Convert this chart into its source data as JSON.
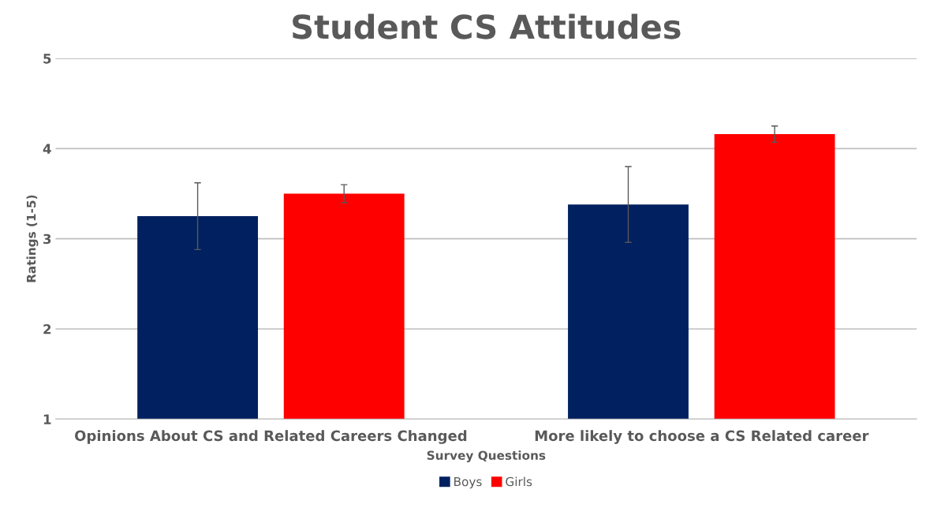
{
  "chart_data": {
    "type": "bar",
    "title": "Student CS Attitudes",
    "xlabel": "Survey Questions",
    "ylabel": "Ratings (1-5)",
    "categories": [
      "Opinions About CS and Related Careers Changed",
      "More likely to choose a CS Related career"
    ],
    "series": [
      {
        "name": "Boys",
        "color": "#002060",
        "values": [
          3.25,
          3.38
        ],
        "errors": [
          0.37,
          0.42
        ]
      },
      {
        "name": "Girls",
        "color": "#ff0000",
        "values": [
          3.5,
          4.16
        ],
        "errors": [
          0.1,
          0.09
        ]
      }
    ],
    "ylim": [
      1,
      5
    ],
    "yticks": [
      1,
      2,
      3,
      4,
      5
    ],
    "grid": "y",
    "legend": "bottom"
  }
}
